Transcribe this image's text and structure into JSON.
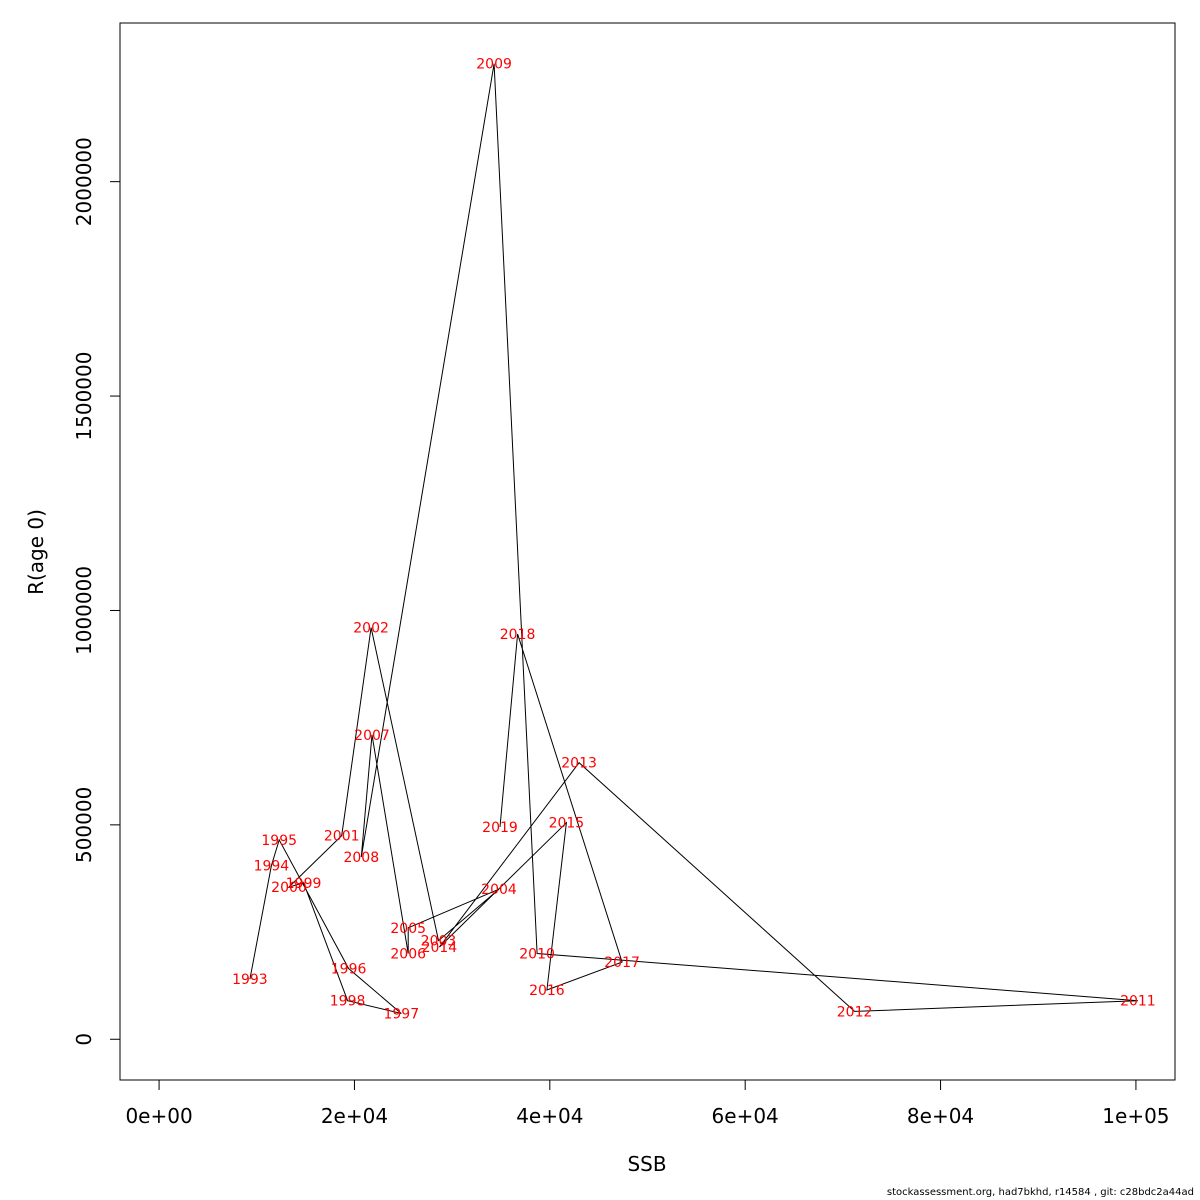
{
  "chart_data": {
    "type": "line",
    "xlabel": "SSB",
    "ylabel": "R(age 0)",
    "xlim": [
      -4000,
      104000
    ],
    "ylim": [
      -95000,
      2370000
    ],
    "x_ticks": [
      0,
      20000,
      40000,
      60000,
      80000,
      100000
    ],
    "x_tick_labels": [
      "0e+00",
      "2e+04",
      "4e+04",
      "6e+04",
      "8e+04",
      "1e+05"
    ],
    "y_ticks": [
      0,
      500000,
      1000000,
      1500000,
      2000000
    ],
    "y_tick_labels": [
      "0",
      "500000",
      "1000000",
      "1500000",
      "2000000"
    ],
    "grid": false,
    "line_color": "#000000",
    "label_color": "#ff0000",
    "points": [
      {
        "year": "1993",
        "x": 9300,
        "y": 140000
      },
      {
        "year": "1994",
        "x": 11500,
        "y": 405000
      },
      {
        "year": "1995",
        "x": 12300,
        "y": 465000
      },
      {
        "year": "1996",
        "x": 19400,
        "y": 165000
      },
      {
        "year": "1997",
        "x": 24800,
        "y": 60000
      },
      {
        "year": "1998",
        "x": 19300,
        "y": 90000
      },
      {
        "year": "1999",
        "x": 14800,
        "y": 365000
      },
      {
        "year": "2000",
        "x": 13300,
        "y": 355000
      },
      {
        "year": "2001",
        "x": 18700,
        "y": 475000
      },
      {
        "year": "2002",
        "x": 21700,
        "y": 960000
      },
      {
        "year": "2003",
        "x": 28600,
        "y": 230000
      },
      {
        "year": "2004",
        "x": 34800,
        "y": 350000
      },
      {
        "year": "2005",
        "x": 25500,
        "y": 260000
      },
      {
        "year": "2006",
        "x": 25500,
        "y": 200000
      },
      {
        "year": "2007",
        "x": 21800,
        "y": 710000
      },
      {
        "year": "2008",
        "x": 20700,
        "y": 425000
      },
      {
        "year": "2009",
        "x": 34300,
        "y": 2275000
      },
      {
        "year": "2010",
        "x": 38700,
        "y": 200000
      },
      {
        "year": "2011",
        "x": 100200,
        "y": 90000
      },
      {
        "year": "2012",
        "x": 71200,
        "y": 65000
      },
      {
        "year": "2013",
        "x": 43000,
        "y": 645000
      },
      {
        "year": "2014",
        "x": 28700,
        "y": 215000
      },
      {
        "year": "2015",
        "x": 41700,
        "y": 505000
      },
      {
        "year": "2016",
        "x": 39700,
        "y": 115000
      },
      {
        "year": "2017",
        "x": 47400,
        "y": 180000
      },
      {
        "year": "2018",
        "x": 36700,
        "y": 945000
      },
      {
        "year": "2019",
        "x": 34900,
        "y": 495000
      }
    ]
  },
  "footer": {
    "text": "stockassessment.org, had7bkhd, r14584 , git: c28bdc2a44ad"
  }
}
